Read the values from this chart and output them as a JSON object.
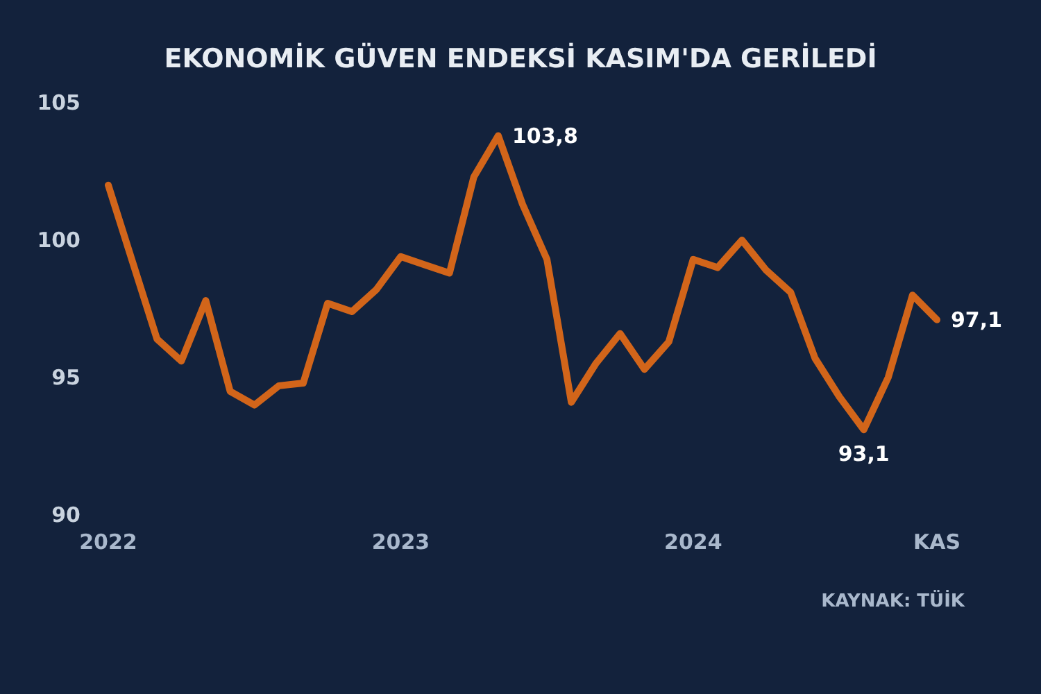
{
  "chart_data": {
    "type": "line",
    "title": "EKONOMİK GÜVEN ENDEKSİ KASIM'DA GERİLEDİ",
    "categories": [
      "2022",
      null,
      null,
      null,
      null,
      null,
      null,
      null,
      null,
      null,
      null,
      null,
      "2023",
      null,
      null,
      null,
      null,
      null,
      null,
      null,
      null,
      null,
      null,
      null,
      "2024",
      null,
      null,
      null,
      null,
      null,
      null,
      null,
      null,
      null,
      "KAS"
    ],
    "series": [
      {
        "color": "#d2651a",
        "values": [
          102.0,
          99.2,
          96.4,
          95.6,
          97.8,
          94.5,
          94.0,
          94.7,
          94.8,
          97.7,
          97.4,
          98.2,
          99.4,
          99.1,
          98.8,
          102.3,
          103.8,
          101.3,
          99.3,
          94.1,
          95.5,
          96.6,
          95.3,
          96.3,
          99.3,
          99.0,
          100.0,
          98.9,
          98.1,
          95.7,
          94.3,
          93.1,
          95.0,
          98.0,
          97.1
        ],
        "value_labels": [
          null,
          null,
          null,
          null,
          null,
          null,
          null,
          null,
          null,
          null,
          null,
          null,
          null,
          null,
          null,
          null,
          "103,8",
          null,
          null,
          null,
          null,
          null,
          null,
          null,
          null,
          null,
          null,
          null,
          null,
          null,
          null,
          "93,1",
          null,
          null,
          "97,1"
        ]
      }
    ],
    "ylim": [
      90,
      105
    ],
    "yticks": [
      90,
      95,
      100,
      105
    ],
    "grid": false,
    "marker": "none",
    "line_style": "solid",
    "annotations": [
      "KAYNAK: TÜİK"
    ]
  }
}
